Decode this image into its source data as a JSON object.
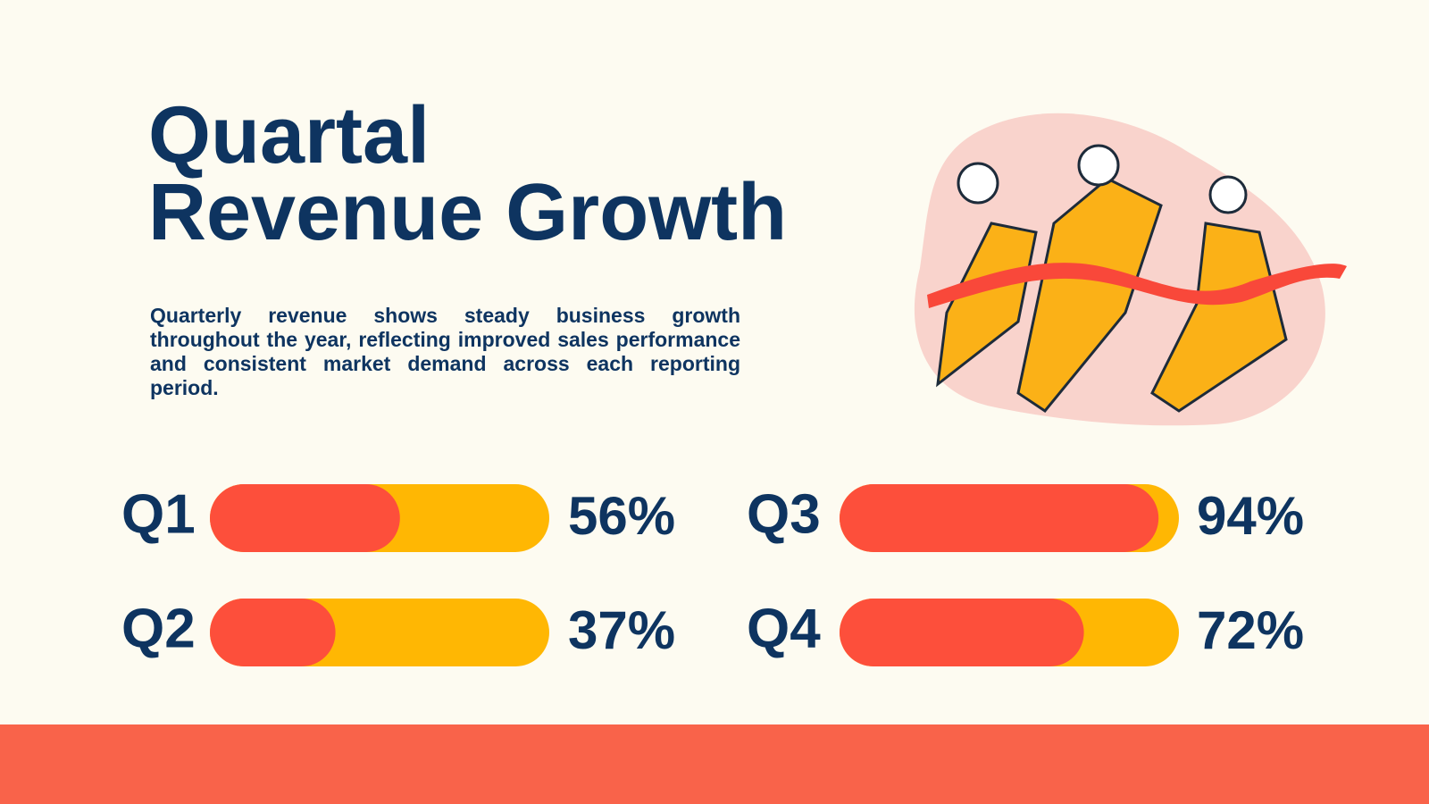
{
  "title": [
    "Quartal",
    "Revenue Growth"
  ],
  "description": "Quarterly revenue shows steady business growth throughout the year, reflecting improved sales performance and consistent market demand across each reporting period.",
  "chart_data": {
    "type": "progress",
    "categories": [
      "Q1",
      "Q2",
      "Q3",
      "Q4"
    ],
    "values": [
      56,
      37,
      94,
      72
    ],
    "value_labels": [
      "56%",
      "37%",
      "94%",
      "72%"
    ],
    "xlim": [
      0,
      100
    ],
    "color": "#fd4f3b",
    "track_color": "#ffb703"
  }
}
